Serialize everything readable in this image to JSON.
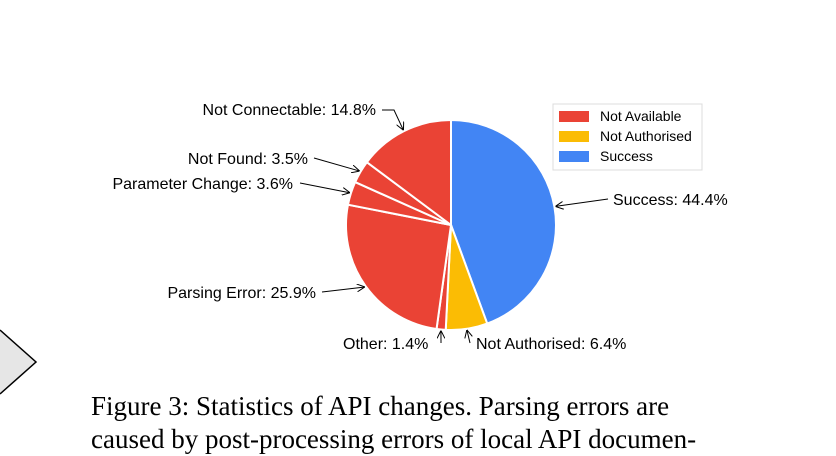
{
  "chart_data": {
    "type": "pie",
    "slices": [
      {
        "label": "Success",
        "value": 44.4,
        "category": "Success",
        "text": "Success: 44.4%"
      },
      {
        "label": "Not Authorised",
        "value": 6.4,
        "category": "Not Authorised",
        "text": "Not Authorised: 6.4%"
      },
      {
        "label": "Other",
        "value": 1.4,
        "category": "Not Available",
        "text": "Other: 1.4%"
      },
      {
        "label": "Parsing Error",
        "value": 25.9,
        "category": "Not Available",
        "text": "Parsing Error: 25.9%"
      },
      {
        "label": "Parameter Change",
        "value": 3.6,
        "category": "Not Available",
        "text": "Parameter Change: 3.6%"
      },
      {
        "label": "Not Found",
        "value": 3.5,
        "category": "Not Available",
        "text": "Not Found: 3.5%"
      },
      {
        "label": "Not Connectable",
        "value": 14.8,
        "category": "Not Available",
        "text": "Not Connectable: 14.8%"
      }
    ],
    "legend": [
      {
        "name": "Not Available",
        "color": "#ea4335"
      },
      {
        "name": "Not Authorised",
        "color": "#fbbc04"
      },
      {
        "name": "Success",
        "color": "#4285f4"
      }
    ],
    "legend_position": "top-right"
  },
  "caption": {
    "line1": "Figure 3: Statistics of API changes. Parsing errors are",
    "line2": "caused by post-processing errors of local API documen-"
  }
}
